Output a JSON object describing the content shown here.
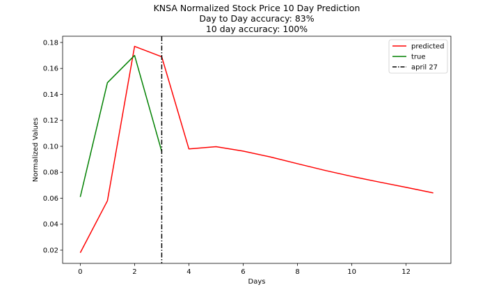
{
  "chart_data": {
    "type": "line",
    "title_lines": [
      "KNSA Normalized Stock Price 10 Day Prediction",
      "Day to Day accuracy: 83%",
      "10 day accuracy: 100%"
    ],
    "xlabel": "Days",
    "ylabel": "Normalized Values",
    "xlim": [
      -0.65,
      13.65
    ],
    "ylim": [
      0.0098,
      0.1848
    ],
    "xticks": [
      0,
      2,
      4,
      6,
      8,
      10,
      12
    ],
    "yticks": [
      0.02,
      0.04,
      0.06,
      0.08,
      0.1,
      0.12,
      0.14,
      0.16,
      0.18
    ],
    "ytick_labels": [
      "0.02",
      "0.04",
      "0.06",
      "0.08",
      "0.10",
      "0.12",
      "0.14",
      "0.16",
      "0.18"
    ],
    "series": [
      {
        "name": "predicted",
        "color": "#ff0000",
        "x": [
          0,
          1,
          2,
          3,
          4,
          5,
          6,
          7,
          8,
          9,
          10,
          11,
          12,
          13
        ],
        "values": [
          0.018,
          0.058,
          0.177,
          0.169,
          0.098,
          0.0997,
          0.0963,
          0.0918,
          0.0866,
          0.0815,
          0.0768,
          0.0725,
          0.0684,
          0.0641
        ]
      },
      {
        "name": "true",
        "color": "#008000",
        "x": [
          0,
          1,
          2,
          3
        ],
        "values": [
          0.061,
          0.149,
          0.17,
          0.096
        ]
      }
    ],
    "vline": {
      "name": "april 27",
      "x": 3,
      "color": "#000000",
      "style": "dashdot"
    },
    "legend_position": "top-right",
    "grid": false
  }
}
